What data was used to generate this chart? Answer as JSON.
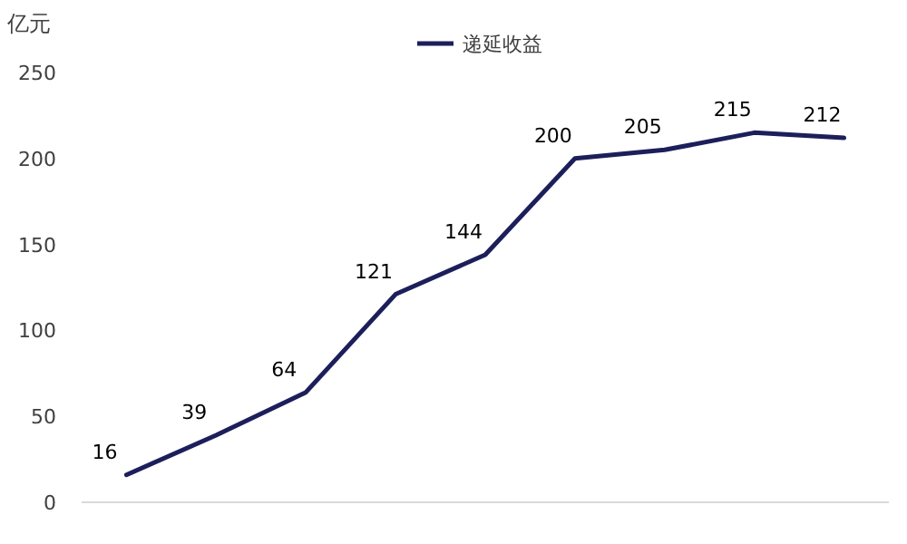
{
  "chart_data": {
    "type": "line",
    "ylabel": "亿元",
    "categories": [
      null,
      null,
      null,
      null,
      null,
      null,
      null,
      null,
      null
    ],
    "series": [
      {
        "name": "递延收益",
        "color": "#1c1f5a",
        "values": [
          16,
          39,
          64,
          121,
          144,
          200,
          205,
          215,
          212
        ]
      }
    ],
    "ylim": [
      0,
      250
    ],
    "yticks": [
      0,
      50,
      100,
      150,
      200,
      250
    ],
    "legend": "top",
    "data_labels": true,
    "grid": false,
    "marker": "none",
    "line_style": "solid"
  }
}
